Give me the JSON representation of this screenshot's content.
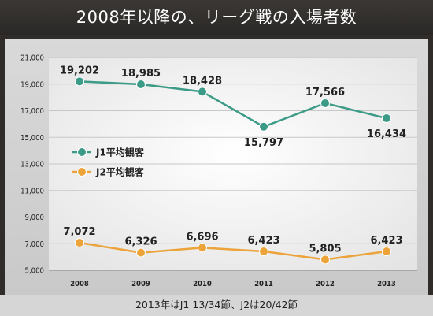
{
  "title": "2008年以降の、リーグ戦の入場者数",
  "footnote": "2013年はJ1 13/34節、J2は20/42節",
  "chart_data": {
    "type": "line",
    "title": "2008年以降の、リーグ戦の入場者数",
    "categories": [
      "2008",
      "2009",
      "2010",
      "2011",
      "2012",
      "2013"
    ],
    "series": [
      {
        "name": "J1平均観客",
        "color": "#3c9b87",
        "values": [
          19202,
          18985,
          18428,
          15797,
          17566,
          16434
        ],
        "labels": [
          "19,202",
          "18,985",
          "18,428",
          "15,797",
          "17,566",
          "16,434"
        ]
      },
      {
        "name": "J2平均観客",
        "color": "#eba33a",
        "values": [
          7072,
          6326,
          6696,
          6423,
          5805,
          6423
        ],
        "labels": [
          "7,072",
          "6,326",
          "6,696",
          "6,423",
          "5,805",
          "6,423"
        ]
      }
    ],
    "ylim": [
      5000,
      21000
    ],
    "yticks": [
      5000,
      7000,
      9000,
      11000,
      13000,
      15000,
      17000,
      19000,
      21000
    ],
    "ytick_labels": [
      "5,000",
      "7,000",
      "9,000",
      "11,000",
      "13,000",
      "15,000",
      "17,000",
      "19,000",
      "21,000"
    ],
    "grid": true,
    "legend_position": "left"
  }
}
